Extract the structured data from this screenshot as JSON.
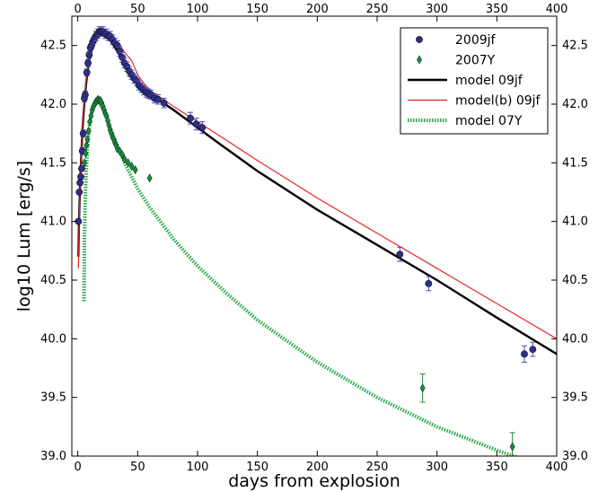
{
  "chart_data": {
    "type": "scatter",
    "title": "",
    "xlabel": "days from explosion",
    "ylabel": "log10 Lum [erg/s]",
    "xlim": [
      -5,
      400
    ],
    "ylim": [
      39.0,
      42.75
    ],
    "x_ticks": [
      0,
      50,
      100,
      150,
      200,
      250,
      300,
      350,
      400
    ],
    "y_ticks": [
      39.0,
      39.5,
      40.0,
      40.5,
      41.0,
      41.5,
      42.0,
      42.5
    ],
    "x_ticks_top": true,
    "y_ticks_right": true,
    "grid": false,
    "legend_position": "top-right",
    "series": [
      {
        "name": "2009jf",
        "kind": "points",
        "marker": "circle",
        "color": "#2e2e8a",
        "errorbar_color": "#4d4db8",
        "points": [
          [
            0.5,
            41.0,
            0.0
          ],
          [
            1.2,
            41.25,
            0.0
          ],
          [
            1.8,
            41.33,
            0.0
          ],
          [
            2.5,
            41.38,
            0.0
          ],
          [
            3.2,
            41.45,
            0.0
          ],
          [
            3.8,
            41.6,
            0.03
          ],
          [
            4.5,
            41.75,
            0.03
          ],
          [
            5.5,
            42.05,
            0.03
          ],
          [
            6.2,
            42.08,
            0.03
          ],
          [
            7.5,
            42.27,
            0.03
          ],
          [
            8.5,
            42.35,
            0.03
          ],
          [
            9.5,
            42.42,
            0.03
          ],
          [
            10.5,
            42.48,
            0.03
          ],
          [
            11.5,
            42.5,
            0.03
          ],
          [
            12.5,
            42.53,
            0.03
          ],
          [
            13.5,
            42.55,
            0.03
          ],
          [
            15,
            42.58,
            0.04
          ],
          [
            16.5,
            42.6,
            0.04
          ],
          [
            18,
            42.62,
            0.04
          ],
          [
            19.5,
            42.62,
            0.04
          ],
          [
            21,
            42.62,
            0.04
          ],
          [
            22.5,
            42.6,
            0.04
          ],
          [
            24,
            42.6,
            0.04
          ],
          [
            25.5,
            42.58,
            0.04
          ],
          [
            27,
            42.58,
            0.04
          ],
          [
            29,
            42.55,
            0.04
          ],
          [
            31,
            42.52,
            0.04
          ],
          [
            33,
            42.5,
            0.04
          ],
          [
            35,
            42.45,
            0.04
          ],
          [
            37,
            42.4,
            0.04
          ],
          [
            39,
            42.35,
            0.04
          ],
          [
            41,
            42.32,
            0.04
          ],
          [
            43,
            42.28,
            0.04
          ],
          [
            45,
            42.25,
            0.04
          ],
          [
            47,
            42.22,
            0.04
          ],
          [
            49,
            42.2,
            0.04
          ],
          [
            51,
            42.16,
            0.04
          ],
          [
            53,
            42.14,
            0.04
          ],
          [
            55,
            42.12,
            0.04
          ],
          [
            57,
            42.1,
            0.04
          ],
          [
            59,
            42.09,
            0.04
          ],
          [
            61,
            42.08,
            0.04
          ],
          [
            64,
            42.05,
            0.04
          ],
          [
            67,
            42.04,
            0.04
          ],
          [
            72,
            42.01,
            0.04
          ],
          [
            94,
            41.88,
            0.05
          ],
          [
            99,
            41.83,
            0.05
          ],
          [
            104,
            41.8,
            0.05
          ],
          [
            269,
            40.72,
            0.06
          ],
          [
            293,
            40.47,
            0.06
          ],
          [
            373,
            39.87,
            0.07
          ],
          [
            380,
            39.91,
            0.06
          ]
        ]
      },
      {
        "name": "2007Y",
        "kind": "points",
        "marker": "diamond",
        "color": "#1a8c3e",
        "errorbar_color": "#1a8c3e",
        "points": [
          [
            5.5,
            41.5,
            0.0
          ],
          [
            6.5,
            41.58,
            0.0
          ],
          [
            7.2,
            41.65,
            0.0
          ],
          [
            8,
            41.7,
            0.0
          ],
          [
            9,
            41.77,
            0.0
          ],
          [
            10,
            41.85,
            0.0
          ],
          [
            11,
            41.9,
            0.0
          ],
          [
            12,
            41.95,
            0.0
          ],
          [
            13,
            41.98,
            0.0
          ],
          [
            14,
            42.0,
            0.0
          ],
          [
            15,
            42.02,
            0.0
          ],
          [
            16,
            42.03,
            0.0
          ],
          [
            17,
            42.04,
            0.0
          ],
          [
            18,
            42.03,
            0.0
          ],
          [
            19,
            42.03,
            0.0
          ],
          [
            20,
            42.01,
            0.0
          ],
          [
            21,
            41.98,
            0.0
          ],
          [
            22,
            41.95,
            0.0
          ],
          [
            23,
            41.92,
            0.0
          ],
          [
            24,
            41.9,
            0.0
          ],
          [
            25,
            41.86,
            0.0
          ],
          [
            26,
            41.82,
            0.0
          ],
          [
            27,
            41.78,
            0.0
          ],
          [
            28,
            41.75,
            0.0
          ],
          [
            29,
            41.72,
            0.0
          ],
          [
            30,
            41.7,
            0.0
          ],
          [
            31,
            41.67,
            0.0
          ],
          [
            32,
            41.65,
            0.0
          ],
          [
            33,
            41.62,
            0.0
          ],
          [
            35,
            41.6,
            0.0
          ],
          [
            37,
            41.57,
            0.0
          ],
          [
            39,
            41.53,
            0.0
          ],
          [
            42,
            41.5,
            0.0
          ],
          [
            45,
            41.47,
            0.0
          ],
          [
            48,
            41.44,
            0.0
          ],
          [
            60,
            41.37,
            0.0
          ],
          [
            288,
            39.58,
            0.12
          ],
          [
            363,
            39.08,
            0.12
          ]
        ]
      },
      {
        "name": "model 09jf",
        "kind": "line",
        "style": "solid",
        "color": "#000000",
        "points": [
          [
            0.5,
            40.7
          ],
          [
            1,
            41.0
          ],
          [
            2,
            41.35
          ],
          [
            3,
            41.6
          ],
          [
            4,
            41.8
          ],
          [
            5,
            41.95
          ],
          [
            6,
            42.08
          ],
          [
            7,
            42.18
          ],
          [
            8,
            42.27
          ],
          [
            10,
            42.4
          ],
          [
            12,
            42.48
          ],
          [
            14,
            42.53
          ],
          [
            16,
            42.56
          ],
          [
            18,
            42.58
          ],
          [
            20,
            42.59
          ],
          [
            22,
            42.59
          ],
          [
            24,
            42.58
          ],
          [
            26,
            42.56
          ],
          [
            28,
            42.53
          ],
          [
            30,
            42.5
          ],
          [
            35,
            42.42
          ],
          [
            40,
            42.34
          ],
          [
            45,
            42.26
          ],
          [
            50,
            42.2
          ],
          [
            55,
            42.15
          ],
          [
            60,
            42.1
          ],
          [
            70,
            42.02
          ],
          [
            80,
            41.95
          ],
          [
            100,
            41.8
          ],
          [
            120,
            41.65
          ],
          [
            150,
            41.43
          ],
          [
            200,
            41.1
          ],
          [
            250,
            40.8
          ],
          [
            300,
            40.5
          ],
          [
            350,
            40.18
          ],
          [
            400,
            39.87
          ]
        ]
      },
      {
        "name": "model(b) 09jf",
        "kind": "line",
        "style": "solid",
        "color": "#e8262b",
        "points": [
          [
            0.5,
            40.6
          ],
          [
            1,
            40.95
          ],
          [
            2,
            41.35
          ],
          [
            3,
            41.62
          ],
          [
            4,
            41.83
          ],
          [
            5,
            41.98
          ],
          [
            6,
            42.1
          ],
          [
            7,
            42.2
          ],
          [
            8,
            42.28
          ],
          [
            10,
            42.41
          ],
          [
            12,
            42.5
          ],
          [
            14,
            42.55
          ],
          [
            16,
            42.58
          ],
          [
            18,
            42.6
          ],
          [
            20,
            42.61
          ],
          [
            22,
            42.61
          ],
          [
            24,
            42.6
          ],
          [
            26,
            42.59
          ],
          [
            28,
            42.57
          ],
          [
            30,
            42.55
          ],
          [
            35,
            42.5
          ],
          [
            40,
            42.43
          ],
          [
            45,
            42.37
          ],
          [
            48,
            42.3
          ],
          [
            50,
            42.25
          ],
          [
            55,
            42.18
          ],
          [
            60,
            42.12
          ],
          [
            70,
            42.05
          ],
          [
            80,
            41.98
          ],
          [
            100,
            41.85
          ],
          [
            120,
            41.72
          ],
          [
            150,
            41.52
          ],
          [
            200,
            41.2
          ],
          [
            250,
            40.9
          ],
          [
            300,
            40.6
          ],
          [
            350,
            40.3
          ],
          [
            400,
            40.0
          ]
        ]
      },
      {
        "name": "model 07Y",
        "kind": "line",
        "style": "dotted",
        "color": "#27a846",
        "points": [
          [
            5.2,
            40.32
          ],
          [
            5.6,
            40.9
          ],
          [
            6.2,
            41.2
          ],
          [
            7,
            41.42
          ],
          [
            8,
            41.6
          ],
          [
            9,
            41.74
          ],
          [
            10,
            41.84
          ],
          [
            12,
            41.94
          ],
          [
            14,
            41.99
          ],
          [
            16,
            42.01
          ],
          [
            18,
            42.01
          ],
          [
            20,
            41.98
          ],
          [
            22,
            41.93
          ],
          [
            25,
            41.85
          ],
          [
            30,
            41.72
          ],
          [
            35,
            41.6
          ],
          [
            40,
            41.48
          ],
          [
            50,
            41.28
          ],
          [
            60,
            41.12
          ],
          [
            80,
            40.85
          ],
          [
            100,
            40.62
          ],
          [
            125,
            40.38
          ],
          [
            150,
            40.16
          ],
          [
            200,
            39.8
          ],
          [
            250,
            39.5
          ],
          [
            300,
            39.25
          ],
          [
            350,
            39.05
          ],
          [
            375,
            38.96
          ],
          [
            400,
            38.88
          ]
        ]
      }
    ]
  }
}
